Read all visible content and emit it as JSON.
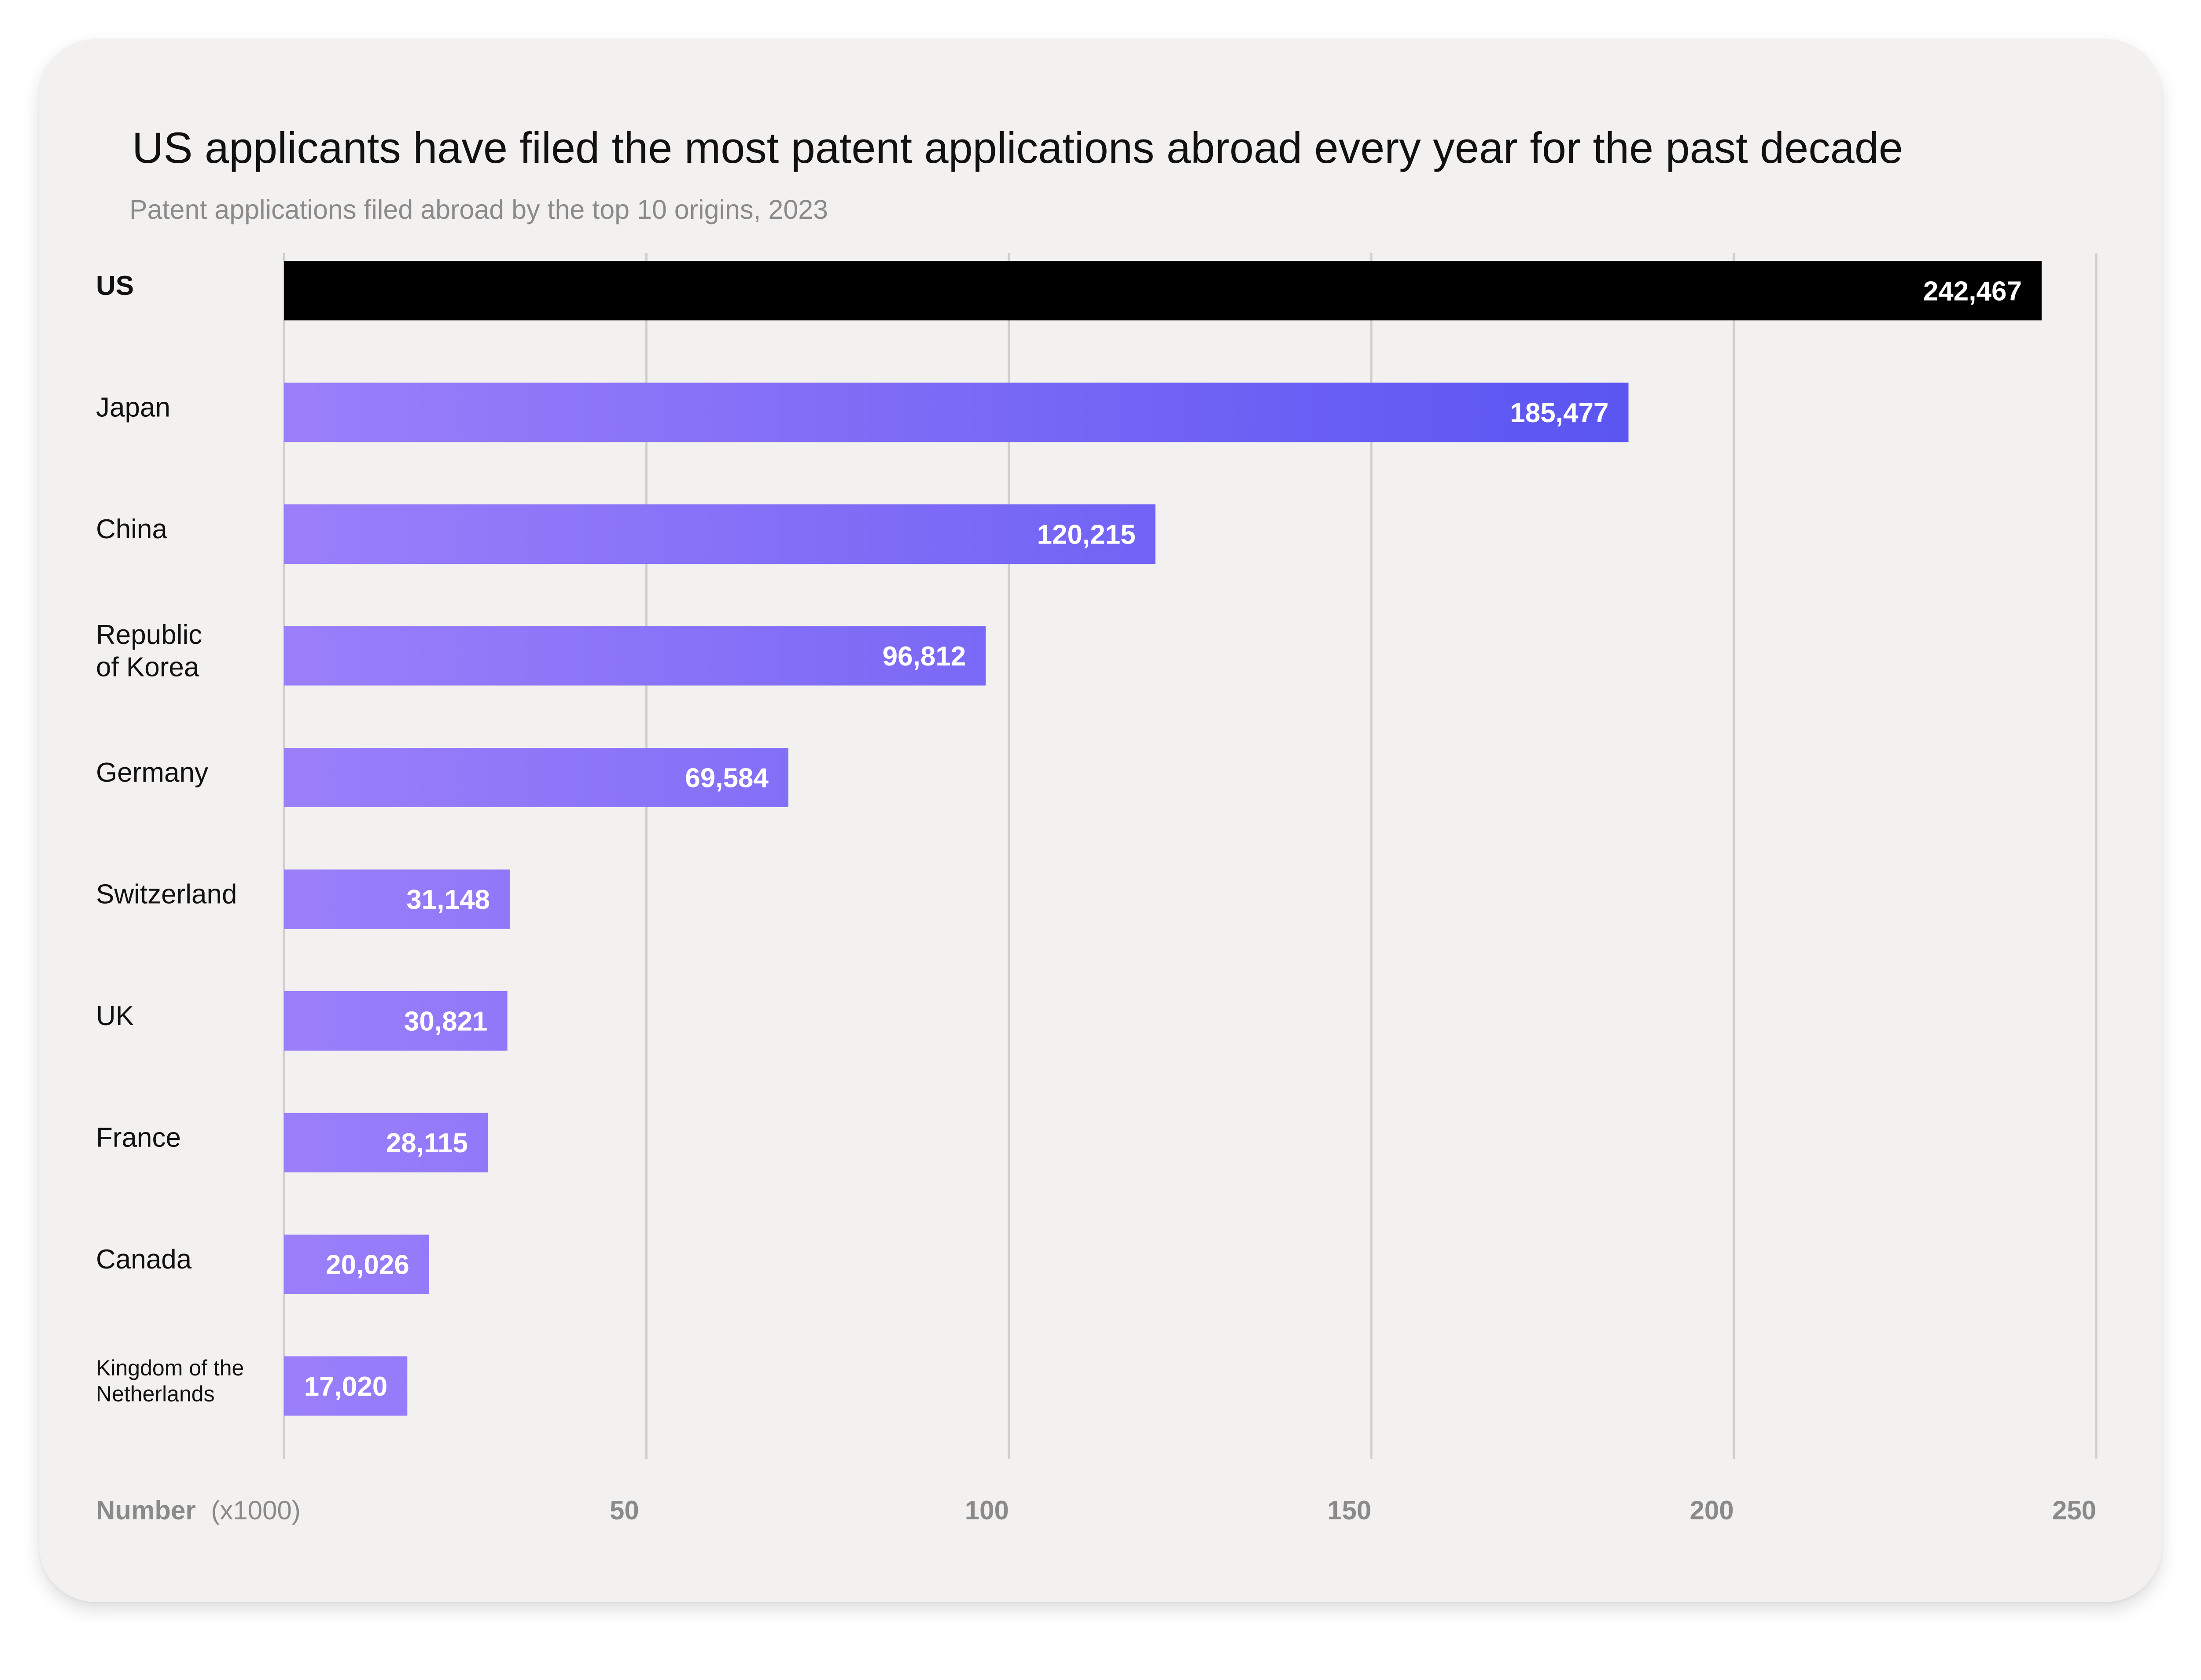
{
  "title": "US applicants have filed the most patent applications abroad every year for the past decade",
  "subtitle": "Patent applications filed abroad by the top 10 origins, 2023",
  "chart_data": {
    "type": "bar",
    "orientation": "horizontal",
    "categories": [
      "US",
      "Japan",
      "China",
      "Republic of Korea",
      "Germany",
      "Switzerland",
      "UK",
      "France",
      "Canada",
      "Kingdom of the Netherlands"
    ],
    "category_lines": [
      [
        "US"
      ],
      [
        "Japan"
      ],
      [
        "China"
      ],
      [
        "Republic",
        "of Korea"
      ],
      [
        "Germany"
      ],
      [
        "Switzerland"
      ],
      [
        "UK"
      ],
      [
        "France"
      ],
      [
        "Canada"
      ],
      [
        "Kingdom of the",
        "Netherlands"
      ]
    ],
    "values": [
      242467,
      185477,
      120215,
      96812,
      69584,
      31148,
      30821,
      28115,
      20026,
      17020
    ],
    "value_labels": [
      "242,467",
      "185,477",
      "120,215",
      "96,812",
      "69,584",
      "31,148",
      "30,821",
      "28,115",
      "20,026",
      "17,020"
    ],
    "highlight": "US",
    "xlabel": "Number",
    "xlabel_unit": "(x1000)",
    "xticks": [
      50,
      100,
      150,
      200,
      250
    ],
    "xlim": [
      0,
      250
    ],
    "grid": "vertical",
    "colors": {
      "highlight": "#000000",
      "gradient_start": "#9b7ffa",
      "gradient_end": "#5b55f2",
      "label_text": "#111111",
      "tick_text": "#8a8a8a",
      "gridline": "#cfcfcf"
    }
  }
}
